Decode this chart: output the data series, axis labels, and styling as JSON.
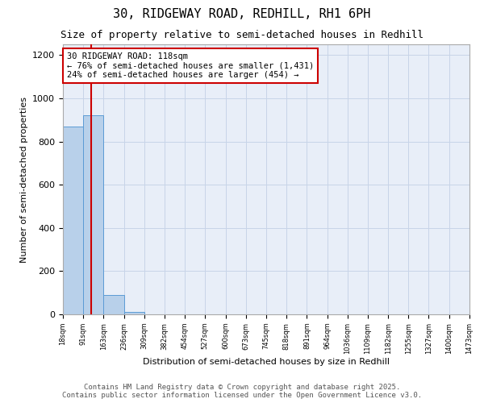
{
  "title": "30, RIDGEWAY ROAD, REDHILL, RH1 6PH",
  "subtitle": "Size of property relative to semi-detached houses in Redhill",
  "xlabel": "Distribution of semi-detached houses by size in Redhill",
  "ylabel": "Number of semi-detached properties",
  "bin_edges": [
    18,
    91,
    163,
    236,
    309,
    382,
    454,
    527,
    600,
    673,
    745,
    818,
    891,
    964,
    1036,
    1109,
    1182,
    1255,
    1327,
    1400,
    1473
  ],
  "bin_counts": [
    870,
    920,
    90,
    10,
    0,
    0,
    0,
    0,
    0,
    0,
    0,
    0,
    0,
    0,
    0,
    0,
    0,
    0,
    0,
    0
  ],
  "property_size": 118,
  "bar_color": "#b8d0ea",
  "bar_edge_color": "#5b9bd5",
  "red_line_color": "#cc0000",
  "annotation_text": "30 RIDGEWAY ROAD: 118sqm\n← 76% of semi-detached houses are smaller (1,431)\n24% of semi-detached houses are larger (454) →",
  "annotation_box_color": "#cc0000",
  "ylim": [
    0,
    1250
  ],
  "yticks": [
    0,
    200,
    400,
    600,
    800,
    1000,
    1200
  ],
  "grid_color": "#c8d4e8",
  "background_color": "#e8eef8",
  "footer_line1": "Contains HM Land Registry data © Crown copyright and database right 2025.",
  "footer_line2": "Contains public sector information licensed under the Open Government Licence v3.0.",
  "title_fontsize": 11,
  "subtitle_fontsize": 9,
  "annotation_fontsize": 7.5,
  "ylabel_fontsize": 8,
  "xlabel_fontsize": 8,
  "footer_fontsize": 6.5,
  "ytick_fontsize": 8,
  "xtick_fontsize": 6
}
